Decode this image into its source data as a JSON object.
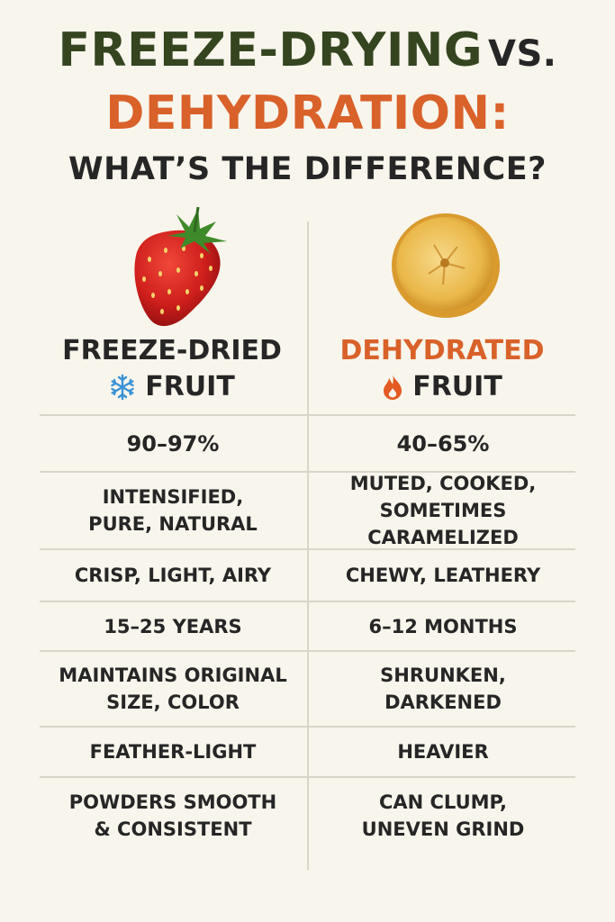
{
  "title": {
    "line1_main": "FREEZE-DRYING",
    "line1_vs": "VS.",
    "line2": "DEHYDRATION:",
    "line3": "WHAT’S THE DIFFERENCE?"
  },
  "colors": {
    "title_green": "#34451f",
    "accent_orange": "#d9612a",
    "text_dark": "#262626",
    "divider": "#d9d5cb",
    "background": "#f8f5ec"
  },
  "columns": {
    "left": {
      "image": "strawberry",
      "header_line1": "FREEZE-DRIED",
      "header_icon": "snowflake-icon",
      "header_line2": "FRUIT"
    },
    "right": {
      "image": "dried-banana-slice",
      "header_line1": "DEHYDRATED",
      "header_icon": "flame-icon",
      "header_line2": "FRUIT"
    }
  },
  "rows": [
    {
      "left": "90–97%",
      "right": "40–65%"
    },
    {
      "left": "INTENSIFIED,\nPURE, NATURAL",
      "right": "MUTED, COOKED,\nSOMETIMES CARAMELIZED"
    },
    {
      "left": "CRISP, LIGHT, AIRY",
      "right": "CHEWY, LEATHERY"
    },
    {
      "left": "15–25 YEARS",
      "right": "6–12 MONTHS"
    },
    {
      "left": "MAINTAINS ORIGINAL\nSIZE, COLOR",
      "right": "SHRUNKEN,\nDARKENED"
    },
    {
      "left": "FEATHER-LIGHT",
      "right": "HEAVIER"
    },
    {
      "left": "POWDERS SMOOTH\n& CONSISTENT",
      "right": "CAN CLUMP,\nUNEVEN GRIND"
    }
  ]
}
